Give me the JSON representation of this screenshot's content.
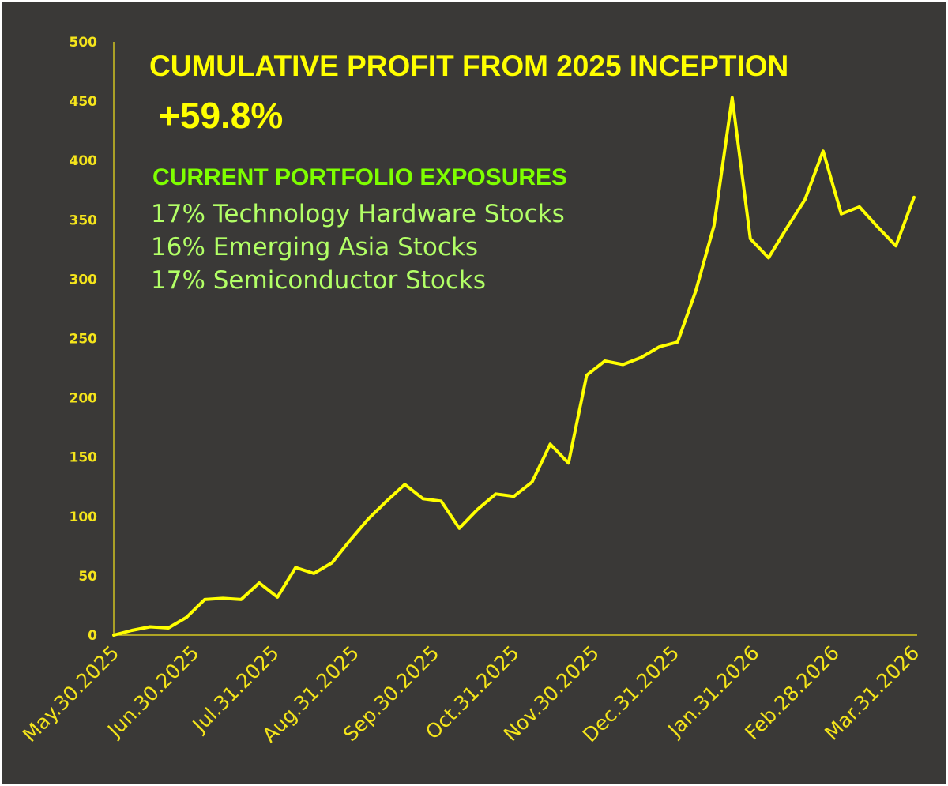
{
  "chart_data": {
    "type": "line",
    "title": "CUMULATIVE PROFIT FROM 2025 INCEPTION",
    "headline": "+59.8%",
    "exposures": {
      "heading": "CURRENT PORTFOLIO EXPOSURES",
      "items": [
        "17% Technology Hardware Stocks",
        "16% Emerging Asia Stocks",
        "17% Semiconductor Stocks"
      ]
    },
    "xlabel": "",
    "ylabel": "",
    "ylim": [
      0,
      500
    ],
    "yticks": [
      0,
      50,
      100,
      150,
      200,
      250,
      300,
      350,
      400,
      450,
      500
    ],
    "xticks": [
      "May.30.2025",
      "Jun.30.2025",
      "Jul.31.2025",
      "Aug.31.2025",
      "Sep.30.2025",
      "Oct.31.2025",
      "Nov.30.2025",
      "Dec.31.2025",
      "Jan.31.2026",
      "Feb.28.2026",
      "Mar.31.2026"
    ],
    "grid": false,
    "line_color": "#ffff00",
    "series": [
      {
        "values": [
          0,
          4,
          7,
          6,
          15,
          30,
          31,
          30,
          44,
          32,
          57,
          52,
          61,
          80,
          98,
          113,
          127,
          115,
          113,
          90,
          106,
          119,
          117,
          129,
          161,
          145,
          219,
          231,
          228,
          234,
          243,
          247,
          290,
          345,
          453,
          334,
          318,
          343,
          367,
          408,
          355,
          361,
          344,
          328,
          369
        ]
      }
    ]
  },
  "colors": {
    "background": "#3a3937",
    "axis": "#f5e51b",
    "title": "#ffff00",
    "exposure_heading": "#7fff00",
    "exposure_items": "#b2ff66"
  }
}
